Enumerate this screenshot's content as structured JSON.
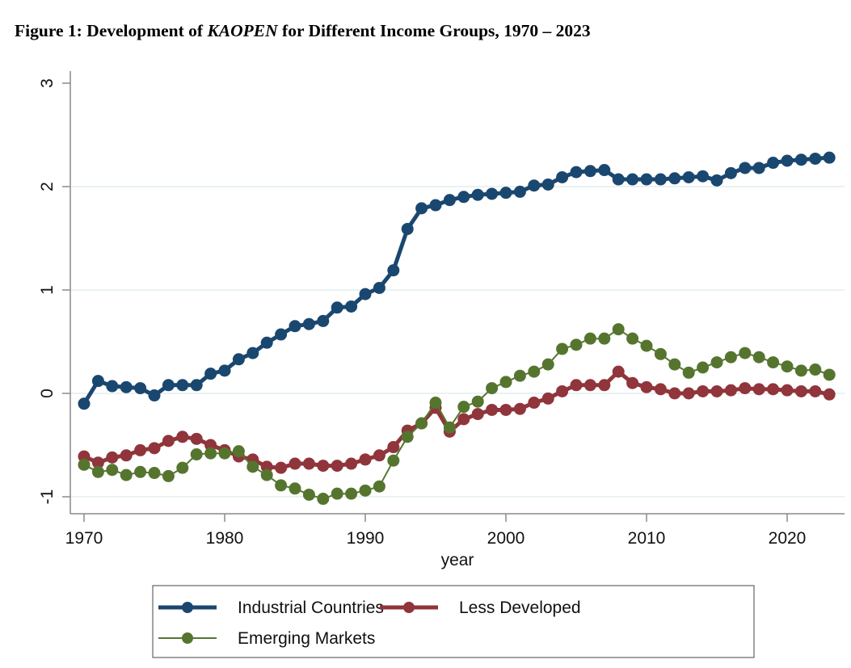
{
  "title": {
    "prefix": "Figure 1: Development of ",
    "italic": "KAOPEN",
    "suffix": " for Different Income Groups, 1970 – 2023"
  },
  "chart_data": {
    "type": "line",
    "title": "Figure 1: Development of KAOPEN for Different Income Groups, 1970 – 2023",
    "xlabel": "year",
    "ylabel": "",
    "xlim": [
      1970,
      2023
    ],
    "ylim": [
      -1,
      3
    ],
    "xticks": [
      1970,
      1980,
      1990,
      2000,
      2010,
      2020
    ],
    "yticks": [
      -1,
      0,
      1,
      2,
      3
    ],
    "grid": true,
    "legend_position": "bottom",
    "x": [
      1970,
      1971,
      1972,
      1973,
      1974,
      1975,
      1976,
      1977,
      1978,
      1979,
      1980,
      1981,
      1982,
      1983,
      1984,
      1985,
      1986,
      1987,
      1988,
      1989,
      1990,
      1991,
      1992,
      1993,
      1994,
      1995,
      1996,
      1997,
      1998,
      1999,
      2000,
      2001,
      2002,
      2003,
      2004,
      2005,
      2006,
      2007,
      2008,
      2009,
      2010,
      2011,
      2012,
      2013,
      2014,
      2015,
      2016,
      2017,
      2018,
      2019,
      2020,
      2021,
      2022,
      2023
    ],
    "series": [
      {
        "name": "Industrial Countries",
        "color": "#1a476f",
        "style": "thick",
        "values": [
          -0.1,
          0.12,
          0.07,
          0.06,
          0.05,
          -0.02,
          0.08,
          0.08,
          0.08,
          0.19,
          0.22,
          0.33,
          0.39,
          0.49,
          0.57,
          0.65,
          0.67,
          0.7,
          0.83,
          0.84,
          0.96,
          1.02,
          1.19,
          1.59,
          1.79,
          1.82,
          1.87,
          1.9,
          1.92,
          1.93,
          1.94,
          1.95,
          2.01,
          2.02,
          2.09,
          2.14,
          2.15,
          2.16,
          2.07,
          2.07,
          2.07,
          2.07,
          2.08,
          2.09,
          2.1,
          2.06,
          2.13,
          2.18,
          2.18,
          2.23,
          2.25,
          2.26,
          2.27,
          2.28
        ]
      },
      {
        "name": "Less Developed",
        "color": "#90353b",
        "style": "thick",
        "values": [
          -0.61,
          -0.67,
          -0.62,
          -0.6,
          -0.55,
          -0.53,
          -0.46,
          -0.42,
          -0.44,
          -0.5,
          -0.55,
          -0.61,
          -0.64,
          -0.71,
          -0.72,
          -0.68,
          -0.68,
          -0.7,
          -0.7,
          -0.68,
          -0.64,
          -0.6,
          -0.52,
          -0.36,
          -0.29,
          -0.14,
          -0.37,
          -0.25,
          -0.2,
          -0.16,
          -0.16,
          -0.15,
          -0.09,
          -0.05,
          0.02,
          0.08,
          0.08,
          0.08,
          0.21,
          0.1,
          0.06,
          0.04,
          0.0,
          0.0,
          0.02,
          0.02,
          0.03,
          0.05,
          0.04,
          0.04,
          0.03,
          0.02,
          0.02,
          -0.01
        ]
      },
      {
        "name": "Emerging Markets",
        "color": "#55752f",
        "style": "thin",
        "values": [
          -0.69,
          -0.76,
          -0.74,
          -0.79,
          -0.76,
          -0.77,
          -0.8,
          -0.72,
          -0.59,
          -0.58,
          -0.58,
          -0.56,
          -0.71,
          -0.79,
          -0.89,
          -0.92,
          -0.98,
          -1.02,
          -0.97,
          -0.97,
          -0.94,
          -0.9,
          -0.65,
          -0.42,
          -0.29,
          -0.09,
          -0.33,
          -0.13,
          -0.08,
          0.05,
          0.11,
          0.17,
          0.21,
          0.28,
          0.43,
          0.47,
          0.53,
          0.53,
          0.62,
          0.53,
          0.46,
          0.38,
          0.28,
          0.2,
          0.25,
          0.3,
          0.35,
          0.39,
          0.35,
          0.3,
          0.26,
          0.22,
          0.23,
          0.18
        ]
      }
    ]
  }
}
